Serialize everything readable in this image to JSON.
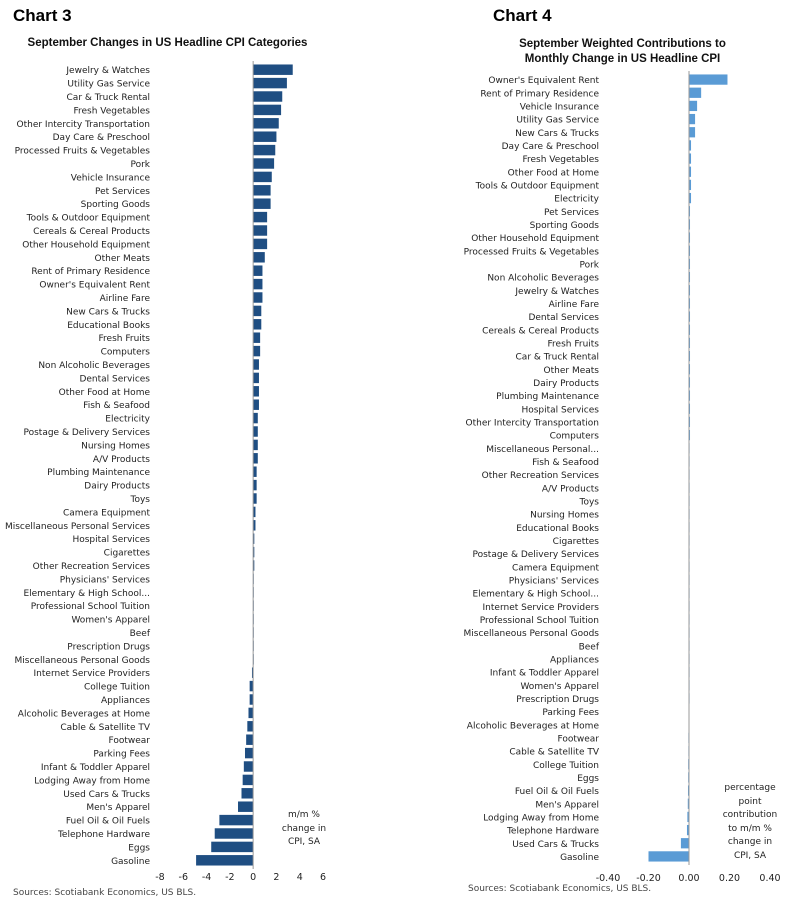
{
  "colors": {
    "chart3_bar": "#1f4e82",
    "chart4_bar": "#5a9bd5",
    "axis": "#999999"
  },
  "chart_data": [
    {
      "id": "chart3",
      "type": "bar",
      "orientation": "horizontal",
      "heading": "Chart 3",
      "title": "September Changes in US Headline CPI Categories",
      "unit_note": "m/m % change in CPI, SA",
      "source": "Sources: Scotiabank Economics, US BLS.",
      "xlim": [
        -8,
        6
      ],
      "xticks": [
        -8,
        -6,
        -4,
        -2,
        0,
        2,
        4,
        6
      ],
      "xtick_labels": [
        "-8",
        "-6",
        "-4",
        "-2",
        "0",
        "2",
        "4",
        "6"
      ],
      "categories": [
        "Jewelry & Watches",
        "Utility Gas Service",
        "Car & Truck Rental",
        "Fresh Vegetables",
        "Other Intercity Transportation",
        "Day Care & Preschool",
        "Processed Fruits & Vegetables",
        "Pork",
        "Vehicle Insurance",
        "Pet Services",
        "Sporting Goods",
        "Tools & Outdoor Equipment",
        "Cereals & Cereal Products",
        "Other Household Equipment",
        "Other Meats",
        "Rent of Primary Residence",
        "Owner's Equivalent Rent",
        "Airline Fare",
        "New Cars & Trucks",
        "Educational Books",
        "Fresh Fruits",
        "Computers",
        "Non Alcoholic Beverages",
        "Dental Services",
        "Other Food at Home",
        "Fish & Seafood",
        "Electricity",
        "Postage & Delivery Services",
        "Nursing Homes",
        "A/V Products",
        "Plumbing Maintenance",
        "Dairy Products",
        "Toys",
        "Camera Equipment",
        "Miscellaneous Personal Services",
        "Hospital Services",
        "Cigarettes",
        "Other Recreation Services",
        "Physicians' Services",
        "Elementary & High School...",
        "Professional School Tuition",
        "Women's Apparel",
        "Beef",
        "Prescription Drugs",
        "Miscellaneous Personal Goods",
        "Internet Service Providers",
        "College Tuition",
        "Appliances",
        "Alcoholic Beverages at Home",
        "Cable & Satellite TV",
        "Footwear",
        "Parking Fees",
        "Infant & Toddler Apparel",
        "Lodging Away from Home",
        "Used Cars & Trucks",
        "Men's Apparel",
        "Fuel Oil & Oil Fuels",
        "Telephone Hardware",
        "Eggs",
        "Gasoline"
      ],
      "values": [
        3.4,
        2.9,
        2.5,
        2.4,
        2.2,
        2.0,
        1.9,
        1.8,
        1.6,
        1.5,
        1.5,
        1.2,
        1.2,
        1.2,
        1.0,
        0.8,
        0.8,
        0.8,
        0.7,
        0.7,
        0.6,
        0.6,
        0.5,
        0.5,
        0.5,
        0.5,
        0.4,
        0.4,
        0.4,
        0.4,
        0.3,
        0.3,
        0.3,
        0.2,
        0.2,
        0.1,
        0.1,
        0.1,
        0.0,
        0.0,
        0.0,
        0.0,
        0.0,
        0.0,
        0.0,
        -0.1,
        -0.3,
        -0.3,
        -0.4,
        -0.5,
        -0.6,
        -0.7,
        -0.8,
        -0.9,
        -1.0,
        -1.3,
        -2.9,
        -3.3,
        -3.6,
        -4.9
      ]
    },
    {
      "id": "chart4",
      "type": "bar",
      "orientation": "horizontal",
      "heading": "Chart 4",
      "title": "September Weighted Contributions to Monthly Change in US Headline CPI",
      "unit_note": "percentage point contribution to m/m % change in CPI, SA",
      "source": "Sources: Scotiabank Economics, US BLS.",
      "xlim": [
        -0.4,
        0.4
      ],
      "xticks": [
        -0.4,
        -0.2,
        0.0,
        0.2,
        0.4
      ],
      "xtick_labels": [
        "-0.40",
        "-0.20",
        "0.00",
        "0.20",
        "0.40"
      ],
      "categories": [
        "Owner's Equivalent Rent",
        "Rent of Primary Residence",
        "Vehicle Insurance",
        "Utility Gas Service",
        "New Cars & Trucks",
        "Day Care & Preschool",
        "Fresh Vegetables",
        "Other Food at Home",
        "Tools & Outdoor Equipment",
        "Electricity",
        "Pet Services",
        "Sporting Goods",
        "Other Household Equipment",
        "Processed Fruits & Vegetables",
        "Pork",
        "Non Alcoholic Beverages",
        "Jewelry & Watches",
        "Airline Fare",
        "Dental Services",
        "Cereals & Cereal Products",
        "Fresh Fruits",
        "Car & Truck Rental",
        "Other Meats",
        "Dairy Products",
        "Plumbing Maintenance",
        "Hospital Services",
        "Other Intercity Transportation",
        "Computers",
        "Miscellaneous Personal...",
        "Fish & Seafood",
        "Other Recreation Services",
        "A/V Products",
        "Toys",
        "Nursing Homes",
        "Educational Books",
        "Cigarettes",
        "Postage & Delivery Services",
        "Camera Equipment",
        "Physicians' Services",
        "Elementary & High School...",
        "Internet Service Providers",
        "Professional School Tuition",
        "Miscellaneous Personal Goods",
        "Beef",
        "Appliances",
        "Infant & Toddler Apparel",
        "Women's Apparel",
        "Prescription Drugs",
        "Parking Fees",
        "Alcoholic Beverages at Home",
        "Footwear",
        "Cable & Satellite TV",
        "College Tuition",
        "Eggs",
        "Fuel Oil & Oil Fuels",
        "Men's Apparel",
        "Lodging Away from Home",
        "Telephone Hardware",
        "Used Cars & Trucks",
        "Gasoline"
      ],
      "values": [
        0.19,
        0.06,
        0.04,
        0.03,
        0.03,
        0.01,
        0.01,
        0.01,
        0.01,
        0.01,
        0.005,
        0.005,
        0.005,
        0.005,
        0.005,
        0.005,
        0.005,
        0.005,
        0.005,
        0.005,
        0.005,
        0.005,
        0.005,
        0.005,
        0.005,
        0.005,
        0.005,
        0.005,
        0.003,
        0.003,
        0.003,
        0.003,
        0.003,
        0.003,
        0.002,
        0.002,
        0.002,
        0.002,
        0.002,
        0.0,
        0.0,
        0.0,
        0.0,
        0.0,
        0.0,
        0.0,
        0.0,
        0.0,
        -0.002,
        -0.002,
        -0.003,
        -0.003,
        -0.004,
        -0.004,
        -0.005,
        -0.006,
        -0.008,
        -0.01,
        -0.04,
        -0.2
      ]
    }
  ]
}
